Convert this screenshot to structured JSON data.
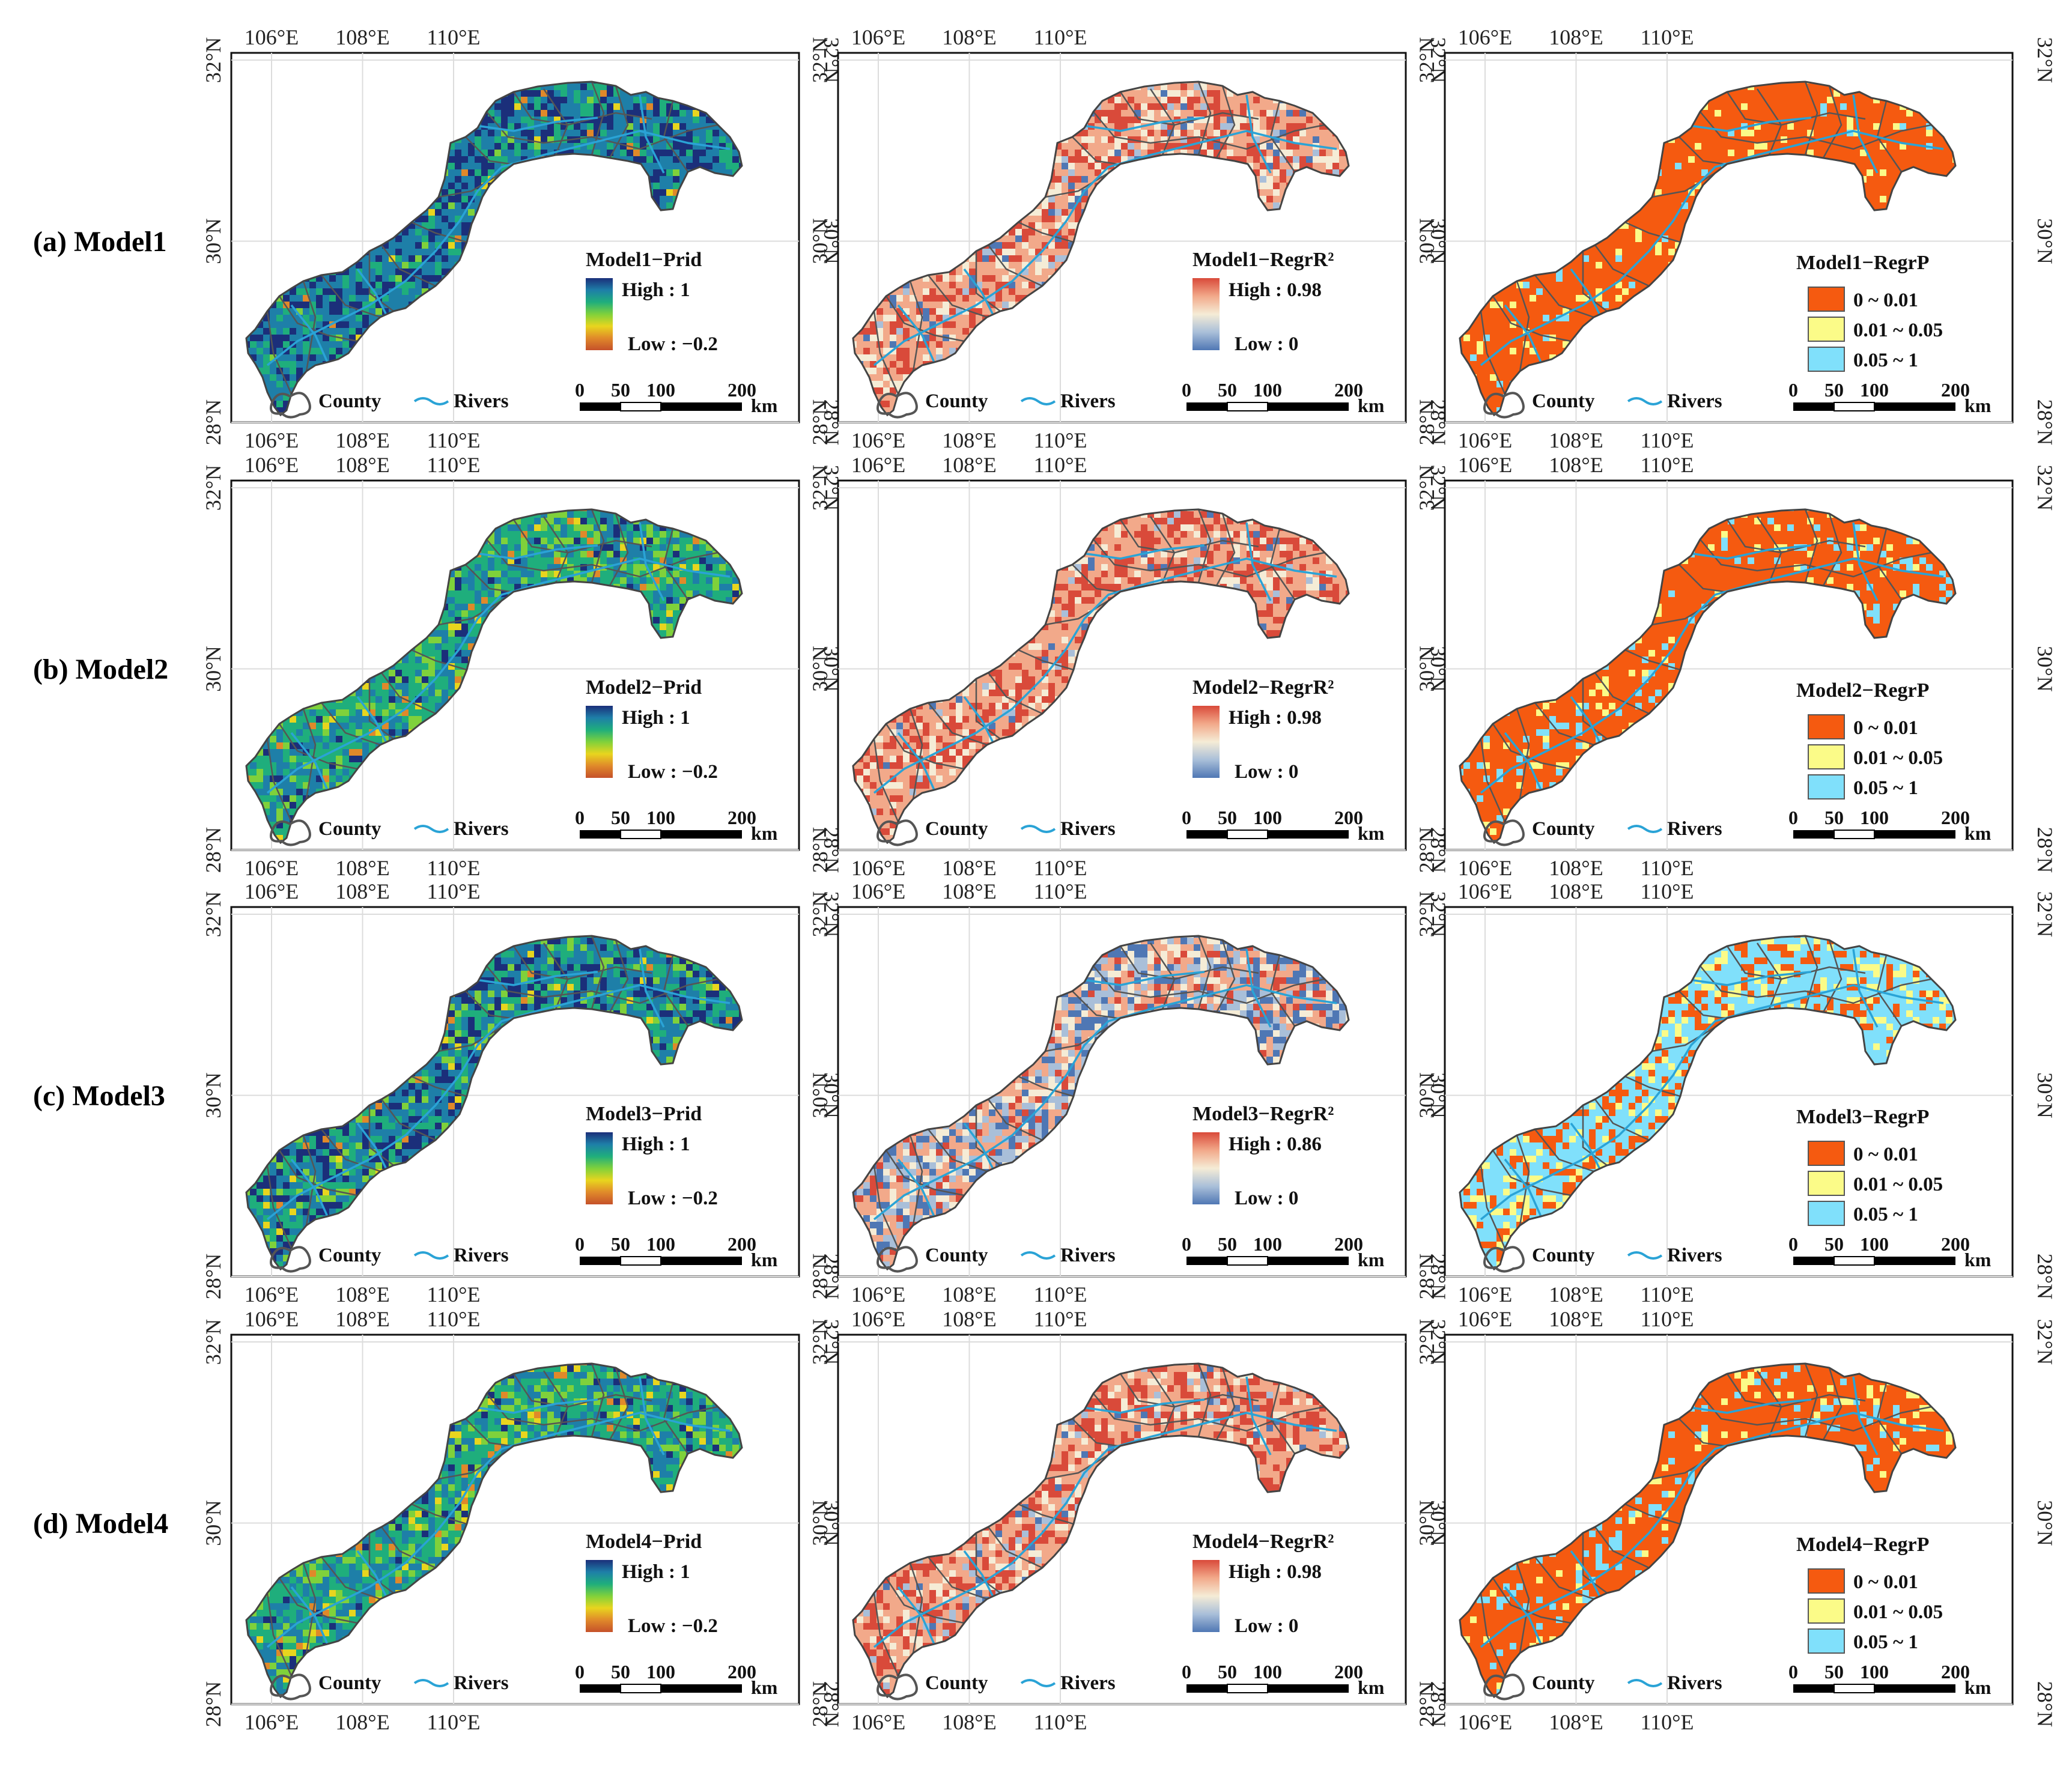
{
  "figure": {
    "row_labels": [
      "(a) Model1",
      "(b) Model2",
      "(c) Model3",
      "(d) Model4"
    ],
    "lon_ticks": [
      "106°E",
      "108°E",
      "110°E"
    ],
    "lat_ticks": [
      "28°N",
      "30°N",
      "32°N"
    ],
    "footer_legend": {
      "county": "County",
      "rivers": "Rivers"
    },
    "scale_bar": {
      "labels": [
        "0",
        "50",
        "100",
        "200"
      ],
      "unit": "km"
    },
    "colors": {
      "prid_gradient": [
        "#1b2f7a",
        "#1e7fa8",
        "#1fae7c",
        "#7fd13b",
        "#e8d51e",
        "#e0892a",
        "#c5512a"
      ],
      "r2_gradient": [
        "#d94a3a",
        "#f2a98a",
        "#f5ecd6",
        "#a9bfd9",
        "#4f77b4"
      ],
      "p_classes": [
        "#f55a10",
        "#fbfb88",
        "#80e0fb"
      ],
      "county_outline": "#555555",
      "rivers": "#2aa3d6"
    }
  },
  "panels": [
    {
      "row": 0,
      "col": 0,
      "kind": "prid",
      "title": "Model1−Prid",
      "high": "High : 1",
      "low": "Low : −0.2",
      "mix": {
        "dark": 0.55,
        "teal": 0.35,
        "green": 0.07,
        "yellow": 0.03
      }
    },
    {
      "row": 0,
      "col": 1,
      "kind": "r2",
      "title": "Model1−RegrR²",
      "high": "High : 0.98",
      "low": "Low : 0",
      "mix": {
        "red": 0.55,
        "cream": 0.35,
        "blue": 0.1
      }
    },
    {
      "row": 0,
      "col": 2,
      "kind": "p",
      "title": "Model1−RegrP",
      "classes": [
        "0 ~ 0.01",
        "0.01 ~ 0.05",
        "0.05 ~ 1"
      ],
      "mix": {
        "c0": 0.88,
        "c1": 0.08,
        "c2": 0.04
      }
    },
    {
      "row": 1,
      "col": 0,
      "kind": "prid",
      "title": "Model2−Prid",
      "high": "High : 1",
      "low": "Low : −0.2",
      "mix": {
        "dark": 0.15,
        "teal": 0.45,
        "green": 0.33,
        "yellow": 0.07
      }
    },
    {
      "row": 1,
      "col": 1,
      "kind": "r2",
      "title": "Model2−RegrR²",
      "high": "High : 0.98",
      "low": "Low : 0",
      "mix": {
        "red": 0.72,
        "cream": 0.23,
        "blue": 0.05
      }
    },
    {
      "row": 1,
      "col": 2,
      "kind": "p",
      "title": "Model2−RegrP",
      "classes": [
        "0 ~ 0.01",
        "0.01 ~ 0.05",
        "0.05 ~ 1"
      ],
      "mix": {
        "c0": 0.82,
        "c1": 0.08,
        "c2": 0.1
      }
    },
    {
      "row": 2,
      "col": 0,
      "kind": "prid",
      "title": "Model3−Prid",
      "high": "High : 1",
      "low": "Low : −0.2",
      "mix": {
        "dark": 0.5,
        "teal": 0.25,
        "green": 0.2,
        "yellow": 0.05
      }
    },
    {
      "row": 2,
      "col": 1,
      "kind": "r2",
      "title": "Model3−RegrR²",
      "high": "High : 0.86",
      "low": "Low : 0",
      "mix": {
        "red": 0.2,
        "cream": 0.35,
        "blue": 0.45
      }
    },
    {
      "row": 2,
      "col": 2,
      "kind": "p",
      "title": "Model3−RegrP",
      "classes": [
        "0 ~ 0.01",
        "0.01 ~ 0.05",
        "0.05 ~ 1"
      ],
      "mix": {
        "c0": 0.25,
        "c1": 0.15,
        "c2": 0.6
      }
    },
    {
      "row": 3,
      "col": 0,
      "kind": "prid",
      "title": "Model4−Prid",
      "high": "High : 1",
      "low": "Low : −0.2",
      "mix": {
        "dark": 0.12,
        "teal": 0.45,
        "green": 0.35,
        "yellow": 0.08
      }
    },
    {
      "row": 3,
      "col": 1,
      "kind": "r2",
      "title": "Model4−RegrR²",
      "high": "High : 0.98",
      "low": "Low : 0",
      "mix": {
        "red": 0.6,
        "cream": 0.3,
        "blue": 0.1
      }
    },
    {
      "row": 3,
      "col": 2,
      "kind": "p",
      "title": "Model4−RegrP",
      "classes": [
        "0 ~ 0.01",
        "0.01 ~ 0.05",
        "0.05 ~ 1"
      ],
      "mix": {
        "c0": 0.82,
        "c1": 0.07,
        "c2": 0.11
      }
    }
  ]
}
